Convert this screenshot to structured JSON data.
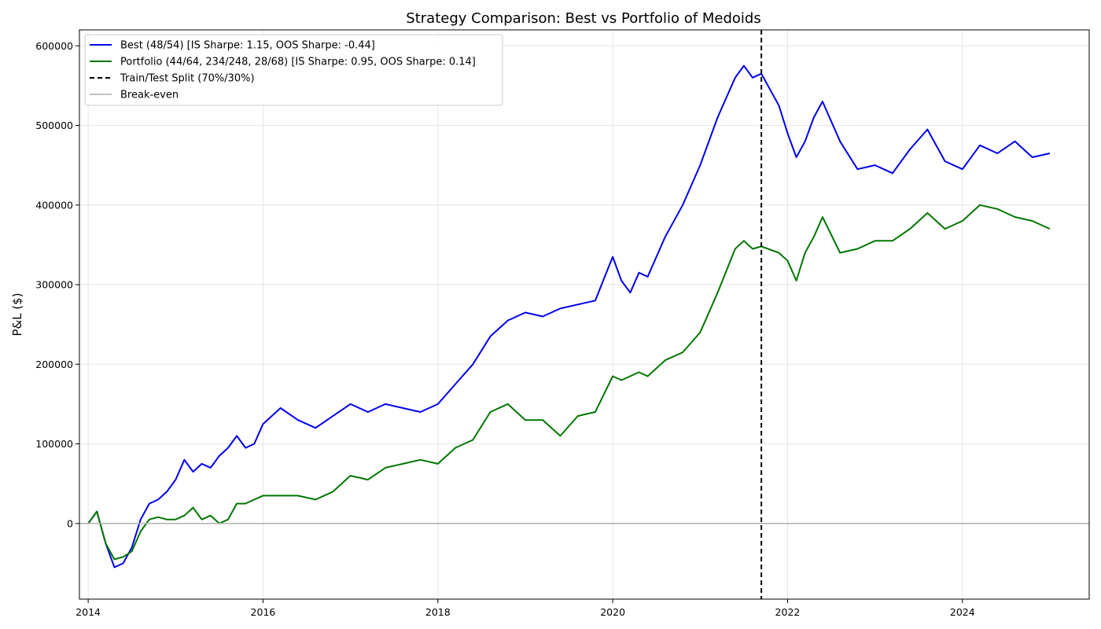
{
  "chart_data": {
    "type": "line",
    "title": "Strategy Comparison: Best vs Portfolio of Medoids",
    "xlabel": "",
    "ylabel": "P&L ($)",
    "xlim": [
      2013.9,
      2025.45
    ],
    "ylim": [
      -95000,
      620000
    ],
    "x_ticks": [
      2014,
      2016,
      2018,
      2020,
      2022,
      2024
    ],
    "x_tick_labels": [
      "2014",
      "2016",
      "2018",
      "2020",
      "2022",
      "2024"
    ],
    "y_ticks": [
      0,
      100000,
      200000,
      300000,
      400000,
      500000,
      600000
    ],
    "y_tick_labels": [
      "0",
      "100000",
      "200000",
      "300000",
      "400000",
      "500000",
      "600000"
    ],
    "grid": true,
    "legend_position": "top-left",
    "split": {
      "x": 2021.7,
      "label": "Train/Test Split (70%/30%)",
      "color": "#000000"
    },
    "breakeven": {
      "y": 0,
      "label": "Break-even",
      "color": "#b0b0b0"
    },
    "series": [
      {
        "name": "Best (48/54) [IS Sharpe: 1.15, OOS Sharpe: -0.44]",
        "color": "#0000ee",
        "x": [
          2014.0,
          2014.1,
          2014.2,
          2014.3,
          2014.4,
          2014.5,
          2014.6,
          2014.7,
          2014.8,
          2014.9,
          2015.0,
          2015.1,
          2015.2,
          2015.3,
          2015.4,
          2015.5,
          2015.6,
          2015.7,
          2015.8,
          2015.9,
          2016.0,
          2016.2,
          2016.4,
          2016.6,
          2016.8,
          2017.0,
          2017.2,
          2017.4,
          2017.6,
          2017.8,
          2018.0,
          2018.2,
          2018.4,
          2018.6,
          2018.8,
          2019.0,
          2019.2,
          2019.4,
          2019.6,
          2019.8,
          2020.0,
          2020.1,
          2020.2,
          2020.3,
          2020.4,
          2020.6,
          2020.8,
          2021.0,
          2021.2,
          2021.4,
          2021.5,
          2021.6,
          2021.7,
          2021.9,
          2022.0,
          2022.1,
          2022.2,
          2022.3,
          2022.4,
          2022.6,
          2022.8,
          2023.0,
          2023.2,
          2023.4,
          2023.6,
          2023.8,
          2024.0,
          2024.2,
          2024.4,
          2024.6,
          2024.8,
          2025.0
        ],
        "y": [
          0,
          15000,
          -25000,
          -55000,
          -50000,
          -30000,
          5000,
          25000,
          30000,
          40000,
          55000,
          80000,
          65000,
          75000,
          70000,
          85000,
          95000,
          110000,
          95000,
          100000,
          125000,
          145000,
          130000,
          120000,
          135000,
          150000,
          140000,
          150000,
          145000,
          140000,
          150000,
          175000,
          200000,
          235000,
          255000,
          265000,
          260000,
          270000,
          275000,
          280000,
          335000,
          305000,
          290000,
          315000,
          310000,
          360000,
          400000,
          450000,
          510000,
          560000,
          575000,
          560000,
          565000,
          525000,
          490000,
          460000,
          480000,
          510000,
          530000,
          480000,
          445000,
          450000,
          440000,
          470000,
          495000,
          455000,
          445000,
          475000,
          465000,
          480000,
          460000,
          465000
        ]
      },
      {
        "name": "Portfolio (44/64, 234/248, 28/68) [IS Sharpe: 0.95, OOS Sharpe: 0.14]",
        "color": "#007700",
        "x": [
          2014.0,
          2014.1,
          2014.2,
          2014.3,
          2014.4,
          2014.5,
          2014.6,
          2014.7,
          2014.8,
          2014.9,
          2015.0,
          2015.1,
          2015.2,
          2015.3,
          2015.4,
          2015.5,
          2015.6,
          2015.7,
          2015.8,
          2015.9,
          2016.0,
          2016.2,
          2016.4,
          2016.6,
          2016.8,
          2017.0,
          2017.2,
          2017.4,
          2017.6,
          2017.8,
          2018.0,
          2018.2,
          2018.4,
          2018.6,
          2018.8,
          2019.0,
          2019.2,
          2019.4,
          2019.6,
          2019.8,
          2020.0,
          2020.1,
          2020.2,
          2020.3,
          2020.4,
          2020.6,
          2020.8,
          2021.0,
          2021.2,
          2021.4,
          2021.5,
          2021.6,
          2021.7,
          2021.9,
          2022.0,
          2022.1,
          2022.2,
          2022.3,
          2022.4,
          2022.6,
          2022.8,
          2023.0,
          2023.2,
          2023.4,
          2023.6,
          2023.8,
          2024.0,
          2024.2,
          2024.4,
          2024.6,
          2024.8,
          2025.0
        ],
        "y": [
          0,
          15000,
          -25000,
          -45000,
          -42000,
          -35000,
          -10000,
          5000,
          8000,
          5000,
          5000,
          10000,
          20000,
          5000,
          10000,
          0,
          5000,
          25000,
          25000,
          30000,
          35000,
          35000,
          35000,
          30000,
          40000,
          60000,
          55000,
          70000,
          75000,
          80000,
          75000,
          95000,
          105000,
          140000,
          150000,
          130000,
          130000,
          110000,
          135000,
          140000,
          185000,
          180000,
          185000,
          190000,
          185000,
          205000,
          215000,
          240000,
          290000,
          345000,
          355000,
          345000,
          348000,
          340000,
          330000,
          305000,
          340000,
          360000,
          385000,
          340000,
          345000,
          355000,
          355000,
          370000,
          390000,
          370000,
          380000,
          400000,
          395000,
          385000,
          380000,
          370000
        ]
      }
    ]
  }
}
